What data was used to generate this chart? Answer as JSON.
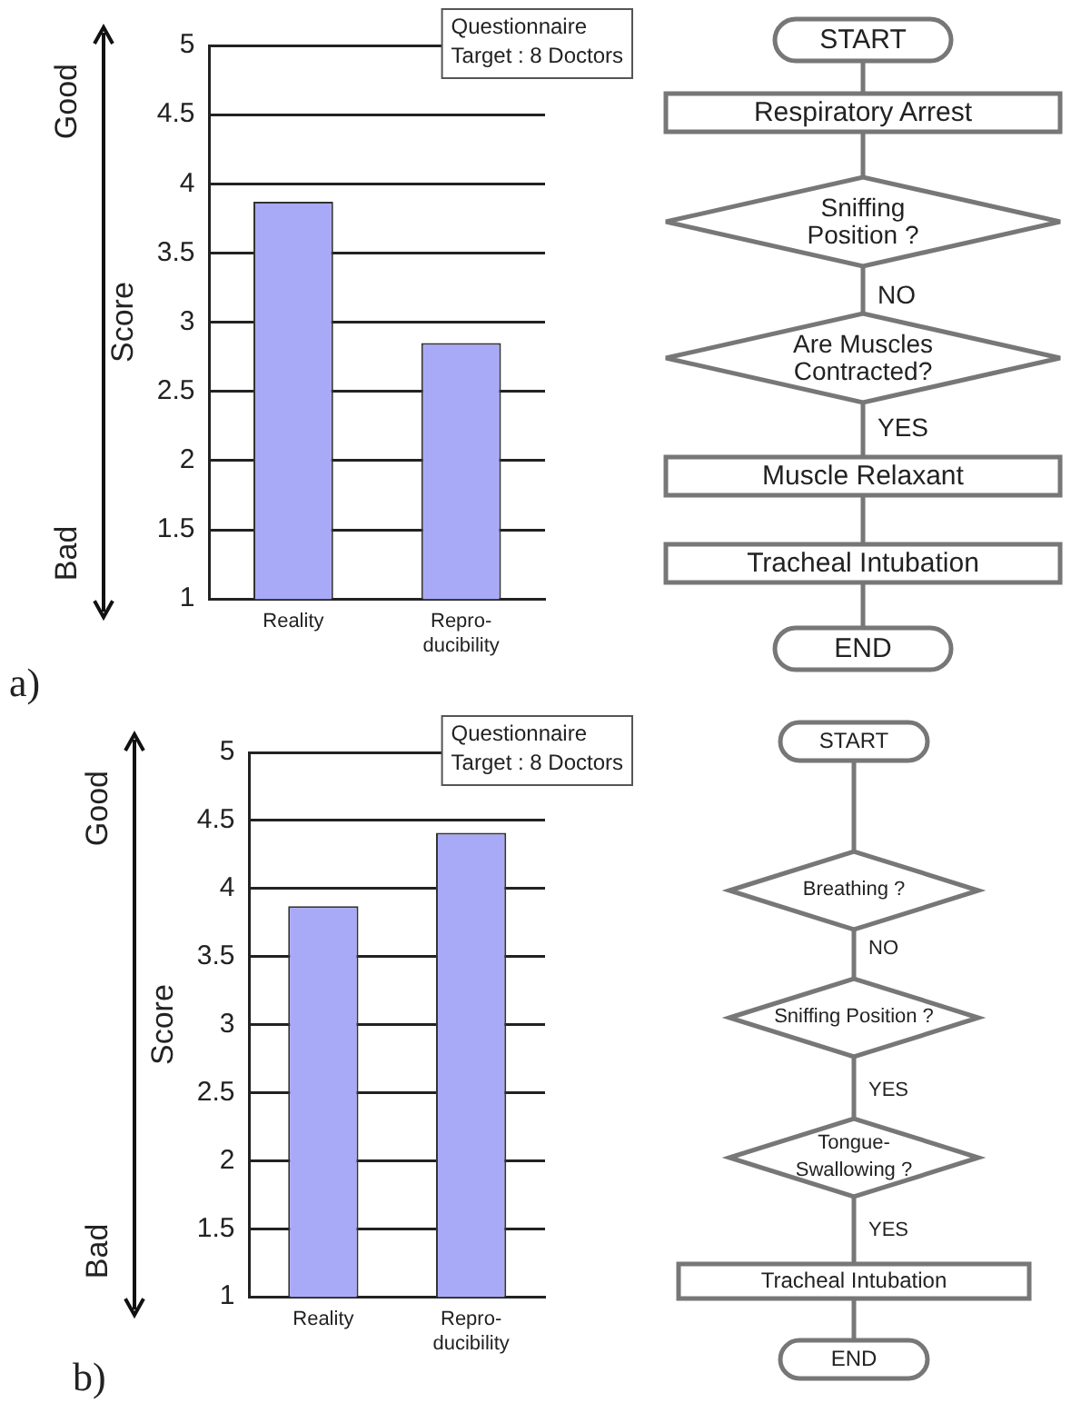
{
  "chart_data": [
    {
      "type": "bar",
      "ylabel": "Score",
      "categories": [
        "Reality",
        "Repro-\nducibility"
      ],
      "values": [
        3.87,
        2.85
      ],
      "color": "#a8aaf8",
      "ylim": [
        1,
        5
      ],
      "yticks": [
        1,
        1.5,
        2,
        2.5,
        3,
        3.5,
        4,
        4.5,
        5
      ],
      "grid": "y",
      "annotations": [
        "Questionnaire\nTarget : 8 Doctors",
        "Good",
        "Bad",
        "a)"
      ]
    },
    {
      "type": "other",
      "annotations": [
        "START",
        "Respiratory Arrest",
        "Sniffing\nPosition ?",
        "NO",
        "Are Muscles\nContracted?",
        "YES",
        "Muscle Relaxant",
        "Tracheal Intubation",
        "END"
      ]
    },
    {
      "type": "bar",
      "ylabel": "Score",
      "categories": [
        "Reality",
        "Repro-\nducibility"
      ],
      "values": [
        3.87,
        4.41
      ],
      "color": "#a8aaf8",
      "ylim": [
        1,
        5
      ],
      "yticks": [
        1,
        1.5,
        2,
        2.5,
        3,
        3.5,
        4,
        4.5,
        5
      ],
      "grid": "y",
      "annotations": [
        "Questionnaire\nTarget : 8 Doctors",
        "Good",
        "Bad",
        "b)"
      ]
    },
    {
      "type": "other",
      "annotations": [
        "START",
        "Breathing ?",
        "NO",
        "Sniffing Position ?",
        "YES",
        "Tongue-\nSwallowing ?",
        "YES",
        "Tracheal Intubation",
        "END"
      ]
    }
  ]
}
